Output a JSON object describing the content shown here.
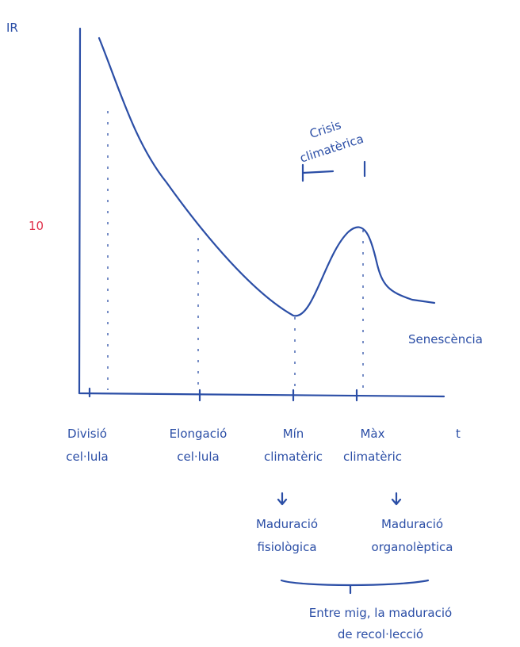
{
  "axis_y_label": "IR",
  "axis_x_label": "t",
  "marker": "10",
  "crisis": {
    "lines": [
      "Crisis",
      "climatèrica"
    ]
  },
  "curve_end_label": "Senescència",
  "x_labels": [
    {
      "lines": [
        "Divisió",
        "cel·lula"
      ]
    },
    {
      "lines": [
        "Elongació",
        "cel·lula"
      ]
    },
    {
      "lines": [
        "Mín",
        "climatèric"
      ]
    },
    {
      "lines": [
        "Màx",
        "climatèric"
      ]
    }
  ],
  "outcomes": [
    {
      "lines": [
        "Maduració",
        "fisiològica"
      ]
    },
    {
      "lines": [
        "Maduració",
        "organolèptica"
      ]
    }
  ],
  "summary": {
    "lines": [
      "Entre mig, la maduració",
      "de recol·lecció"
    ]
  }
}
